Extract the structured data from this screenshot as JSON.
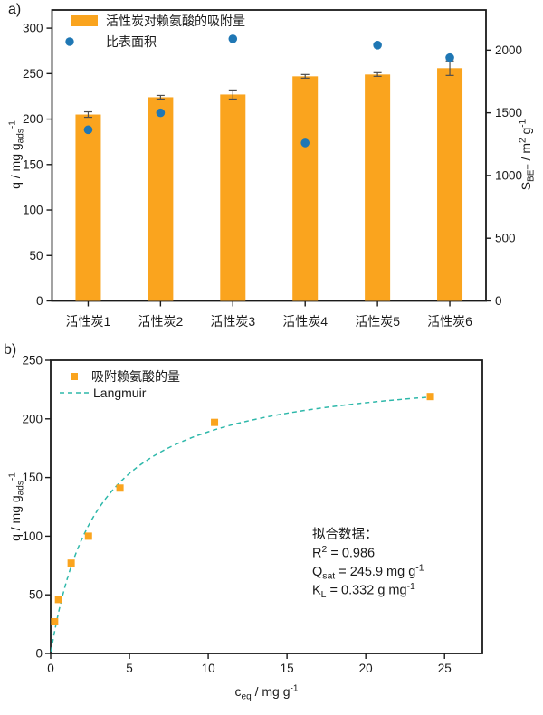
{
  "panels": {
    "a_label": "a)",
    "b_label": "b)"
  },
  "colors": {
    "bar_orange": "#FAA41E",
    "dot_blue": "#1F77B4",
    "fit_teal": "#2EB8AA",
    "axis": "#1a1a1a",
    "error_bar": "#4d4d4d"
  },
  "chart_data": [
    {
      "type": "bar",
      "panel": "a",
      "categories": [
        "活性炭1",
        "活性炭2",
        "活性炭3",
        "活性炭4",
        "活性炭5",
        "活性炭6"
      ],
      "series": [
        {
          "name": "活性炭对赖氨酸的吸附量",
          "type": "bar",
          "axis": "left",
          "values": [
            205,
            224,
            227,
            247,
            249,
            256
          ],
          "errors": [
            3,
            2,
            5,
            2,
            2,
            8
          ]
        },
        {
          "name": "比表面积",
          "type": "point",
          "axis": "right",
          "values": [
            1365,
            1500,
            2090,
            1260,
            2040,
            1940
          ]
        }
      ],
      "ylabel_left": "q / mg g_(ads)^(-1)",
      "ylabel_right": "S_(BET) / m^(2) g^(-1)",
      "ylim_left": [
        0,
        320
      ],
      "yticks_left": [
        0,
        50,
        100,
        150,
        200,
        250,
        300
      ],
      "ylim_right": [
        0,
        2320
      ],
      "yticks_right": [
        0,
        500,
        1000,
        1500,
        2000
      ],
      "grid": false,
      "legend_position": "top-left"
    },
    {
      "type": "scatter",
      "panel": "b",
      "series": [
        {
          "name": "吸附赖氨酸的量",
          "type": "point",
          "marker": "square",
          "x": [
            0.25,
            0.5,
            1.3,
            2.4,
            4.4,
            10.4,
            24.1
          ],
          "y": [
            27,
            46,
            77,
            100,
            141,
            197,
            219
          ]
        },
        {
          "name": "Langmuir",
          "type": "fit-line",
          "dash": true,
          "model": "langmuir",
          "Qsat": 245.9,
          "KL": 0.332,
          "c_range": [
            0.02,
            24.15
          ]
        }
      ],
      "xlabel": "c_(eq) / mg g^(-1)",
      "ylabel": "q / mg g_(ads)^(-1)",
      "xlim": [
        0,
        27.4
      ],
      "xticks": [
        0,
        5,
        10,
        15,
        20,
        25
      ],
      "ylim": [
        0,
        250
      ],
      "yticks": [
        0,
        50,
        100,
        150,
        200,
        250
      ],
      "grid": false,
      "legend_position": "top-left",
      "annotation": {
        "lines": [
          "拟合数据：",
          "R^(2) = 0.986",
          "Q_(sat) = 245.9 mg g^(-1)",
          "K_(L) = 0.332 g mg^(-1)"
        ]
      }
    }
  ]
}
